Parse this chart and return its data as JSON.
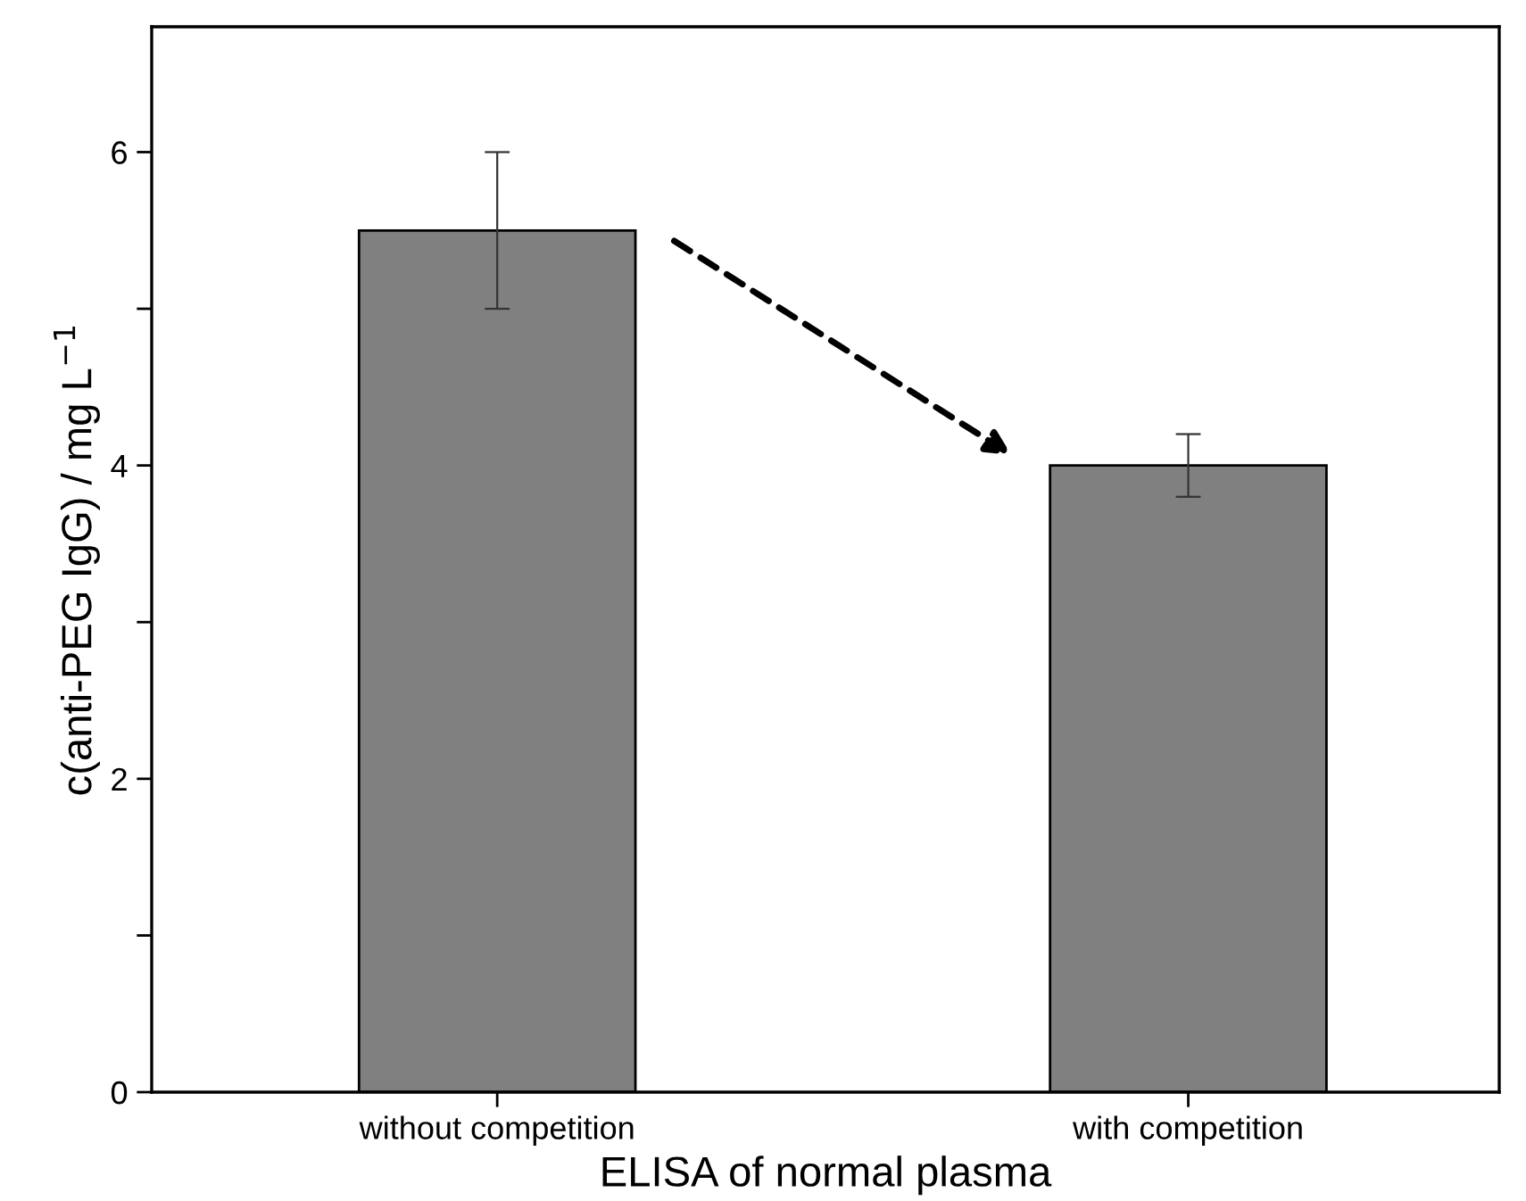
{
  "chart_data": {
    "type": "bar",
    "xlabel": "ELISA of normal plasma",
    "ylabel": "c(anti-PEG IgG) / mg L$^{−1}$",
    "categories": [
      "without competition",
      "with competition"
    ],
    "values": [
      5.5,
      4.0
    ],
    "errors": [
      0.5,
      0.2
    ],
    "color": "#808080",
    "ylim": [
      0,
      6.8
    ],
    "yticks": [
      0,
      {
        "value": 1,
        "label": null
      },
      2,
      {
        "value": 3,
        "label": null
      },
      4,
      {
        "value": 5,
        "label": null
      },
      6
    ],
    "grid": false
  }
}
